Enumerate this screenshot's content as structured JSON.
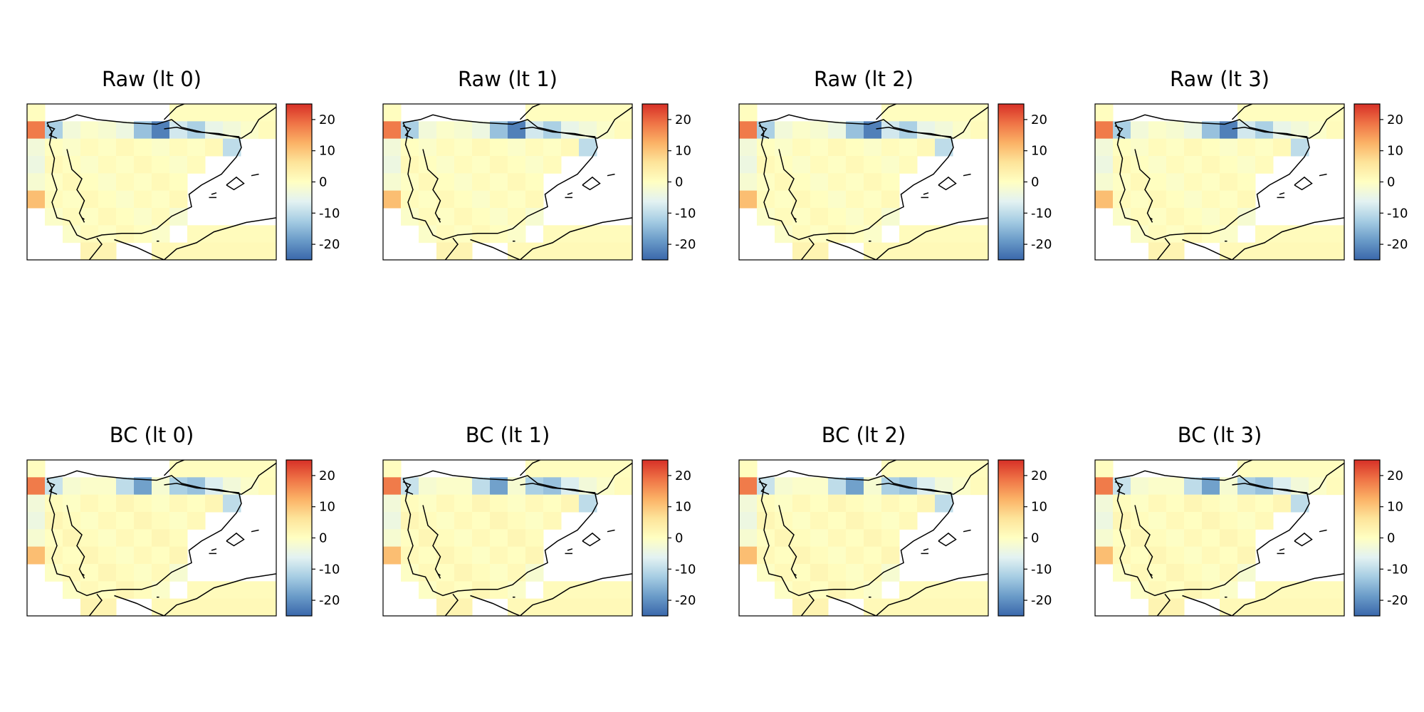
{
  "panels": [
    {
      "title": "Raw (lt 0)",
      "variant": "raw"
    },
    {
      "title": "Raw (lt 1)",
      "variant": "raw"
    },
    {
      "title": "Raw (lt 2)",
      "variant": "raw"
    },
    {
      "title": "Raw (lt 3)",
      "variant": "raw"
    },
    {
      "title": "BC (lt 0)",
      "variant": "bc"
    },
    {
      "title": "BC (lt 1)",
      "variant": "bc"
    },
    {
      "title": "BC (lt 2)",
      "variant": "bc"
    },
    {
      "title": "BC (lt 3)",
      "variant": "bc"
    }
  ],
  "colorbar": {
    "range": [
      -25,
      25
    ],
    "ticks": [
      20,
      10,
      0,
      -10,
      -20
    ],
    "tick_labels": [
      "20",
      "10",
      "0",
      "-10",
      "-20"
    ],
    "colors": [
      "#3a67ab",
      "#6a9bc8",
      "#a6cde3",
      "#e3f2f2",
      "#ffffc2",
      "#fde49a",
      "#fbb266",
      "#ef7446",
      "#d73027"
    ]
  }
}
